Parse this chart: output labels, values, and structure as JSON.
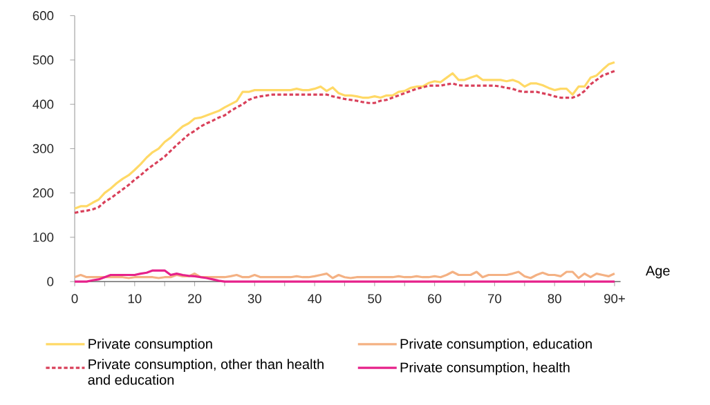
{
  "chart_data": {
    "type": "line",
    "xlabel": "Age",
    "x": [
      0,
      1,
      2,
      3,
      4,
      5,
      6,
      7,
      8,
      9,
      10,
      11,
      12,
      13,
      14,
      15,
      16,
      17,
      18,
      19,
      20,
      21,
      22,
      23,
      24,
      25,
      26,
      27,
      28,
      29,
      30,
      31,
      32,
      33,
      34,
      35,
      36,
      37,
      38,
      39,
      40,
      41,
      42,
      43,
      44,
      45,
      46,
      47,
      48,
      49,
      50,
      51,
      52,
      53,
      54,
      55,
      56,
      57,
      58,
      59,
      60,
      61,
      62,
      63,
      64,
      65,
      66,
      67,
      68,
      69,
      70,
      71,
      72,
      73,
      74,
      75,
      76,
      77,
      78,
      79,
      80,
      81,
      82,
      83,
      84,
      85,
      86,
      87,
      88,
      89,
      90
    ],
    "xlim": [
      0,
      91
    ],
    "ylim": [
      0,
      600
    ],
    "xticks": [
      0,
      {
        "value": 5,
        "label": null
      },
      10,
      {
        "value": 15,
        "label": null
      },
      20,
      {
        "value": 25,
        "label": null
      },
      30,
      {
        "value": 35,
        "label": null
      },
      40,
      {
        "value": 45,
        "label": null
      },
      50,
      {
        "value": 55,
        "label": null
      },
      60,
      {
        "value": 65,
        "label": null
      },
      70,
      {
        "value": 75,
        "label": null
      },
      80,
      {
        "value": 85,
        "label": null
      },
      {
        "value": 90,
        "label": "90+"
      }
    ],
    "yticks": [
      0,
      100,
      200,
      300,
      400,
      500,
      600
    ],
    "legend": "bottom",
    "series": [
      {
        "name": "Private consumption",
        "color": "#ffd966",
        "line_style": "solid",
        "values": [
          165,
          170,
          170,
          178,
          185,
          200,
          210,
          222,
          232,
          240,
          252,
          265,
          280,
          292,
          300,
          315,
          325,
          338,
          350,
          357,
          368,
          370,
          375,
          380,
          385,
          393,
          400,
          407,
          428,
          428,
          432,
          432,
          432,
          432,
          432,
          432,
          432,
          435,
          432,
          432,
          435,
          440,
          430,
          438,
          425,
          420,
          420,
          418,
          415,
          415,
          418,
          415,
          420,
          420,
          428,
          430,
          437,
          440,
          440,
          448,
          452,
          450,
          460,
          470,
          455,
          455,
          460,
          465,
          455,
          455,
          455,
          455,
          452,
          455,
          450,
          440,
          447,
          447,
          443,
          437,
          432,
          435,
          435,
          422,
          440,
          440,
          460,
          465,
          478,
          490,
          495
        ]
      },
      {
        "name": "Private consumption, other than health and education",
        "color": "#d9405a",
        "line_style": "dashed",
        "values": [
          155,
          158,
          160,
          163,
          168,
          180,
          188,
          198,
          208,
          218,
          230,
          240,
          252,
          262,
          272,
          282,
          295,
          308,
          320,
          332,
          340,
          350,
          357,
          363,
          370,
          375,
          385,
          393,
          400,
          410,
          415,
          418,
          420,
          422,
          422,
          422,
          422,
          422,
          422,
          422,
          422,
          422,
          422,
          418,
          415,
          412,
          410,
          408,
          405,
          403,
          403,
          408,
          410,
          415,
          420,
          425,
          430,
          435,
          438,
          442,
          442,
          442,
          445,
          447,
          443,
          442,
          442,
          442,
          442,
          442,
          442,
          440,
          437,
          435,
          430,
          428,
          428,
          428,
          425,
          422,
          418,
          415,
          415,
          415,
          420,
          430,
          445,
          455,
          465,
          470,
          475
        ]
      },
      {
        "name": "Private consumption, education",
        "color": "#f4b183",
        "line_style": "solid",
        "values": [
          10,
          15,
          10,
          10,
          10,
          10,
          10,
          10,
          10,
          8,
          10,
          10,
          10,
          10,
          8,
          10,
          10,
          15,
          12,
          12,
          18,
          10,
          10,
          10,
          10,
          10,
          12,
          15,
          10,
          10,
          15,
          10,
          10,
          10,
          10,
          10,
          10,
          12,
          10,
          10,
          12,
          15,
          18,
          8,
          15,
          10,
          8,
          10,
          10,
          10,
          10,
          10,
          10,
          10,
          12,
          10,
          10,
          12,
          10,
          10,
          12,
          10,
          15,
          22,
          15,
          15,
          15,
          22,
          10,
          15,
          15,
          15,
          15,
          18,
          22,
          12,
          8,
          15,
          20,
          15,
          15,
          12,
          22,
          22,
          8,
          18,
          10,
          18,
          15,
          12,
          18
        ]
      },
      {
        "name": "Private consumption, health",
        "color": "#e6218a",
        "line_style": "solid",
        "values": [
          0,
          0,
          0,
          3,
          5,
          10,
          15,
          15,
          15,
          15,
          15,
          18,
          20,
          25,
          25,
          25,
          15,
          18,
          15,
          13,
          12,
          10,
          8,
          5,
          2,
          0,
          0,
          0,
          0,
          0,
          0,
          0,
          0,
          0,
          0,
          0,
          0,
          0,
          0,
          0,
          0,
          0,
          0,
          0,
          0,
          0,
          0,
          0,
          0,
          0,
          0,
          0,
          0,
          0,
          0,
          0,
          0,
          0,
          0,
          0,
          0,
          0,
          0,
          0,
          0,
          0,
          0,
          0,
          0,
          0,
          0,
          0,
          0,
          0,
          0,
          0,
          0,
          0,
          0,
          0,
          0,
          0,
          0,
          0,
          0,
          0,
          0,
          0,
          0,
          0,
          0
        ]
      }
    ]
  }
}
